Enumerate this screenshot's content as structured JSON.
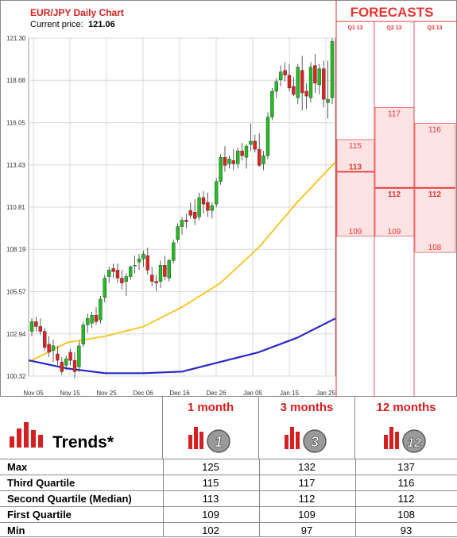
{
  "title": "EUR/JPY Daily Chart",
  "price_label": "Current price:",
  "price_value": "121.06",
  "forecasts_label": "FORECASTS",
  "colors": {
    "up": "#22bb22",
    "down": "#dd2222",
    "ma_short": "#f5c21b",
    "ma_long": "#2727c8",
    "forecast": "#e53535",
    "forecast_fill": "#fde3e3"
  },
  "chart_data": {
    "type": "candlestick",
    "title": "EUR/JPY Daily Chart",
    "ylim": [
      100.32,
      121.3
    ],
    "y_ticks": [
      "121.30",
      "118.68",
      "116.05",
      "113.43",
      "110.81",
      "108.19",
      "105.57",
      "102.94",
      "100.32"
    ],
    "x_ticks": [
      "Nov 05",
      "Nov 15",
      "Nov 25",
      "Dec 06",
      "Dec 16",
      "Dec 26",
      "Jan 05",
      "Jan 15",
      "Jan 25"
    ],
    "candles": [
      [
        103.1,
        103.9,
        102.8,
        103.7
      ],
      [
        103.7,
        104.0,
        103.1,
        103.4
      ],
      [
        103.4,
        103.9,
        102.9,
        103.1
      ],
      [
        103.1,
        103.3,
        101.9,
        102.1
      ],
      [
        102.3,
        102.8,
        101.5,
        101.8
      ],
      [
        101.9,
        102.6,
        101.2,
        102.2
      ],
      [
        101.7,
        102.2,
        101.0,
        101.3
      ],
      [
        101.2,
        101.5,
        100.4,
        100.6
      ],
      [
        101.0,
        101.6,
        100.7,
        101.4
      ],
      [
        101.8,
        102.0,
        101.0,
        101.3
      ],
      [
        101.3,
        101.8,
        100.2,
        100.6
      ],
      [
        100.9,
        102.5,
        100.6,
        102.2
      ],
      [
        102.3,
        103.7,
        102.1,
        103.5
      ],
      [
        103.5,
        104.2,
        103.0,
        103.9
      ],
      [
        103.6,
        104.3,
        103.3,
        104.1
      ],
      [
        104.1,
        104.6,
        103.5,
        103.7
      ],
      [
        103.8,
        105.3,
        103.6,
        105.1
      ],
      [
        105.2,
        106.6,
        104.9,
        106.4
      ],
      [
        106.5,
        107.1,
        106.1,
        106.9
      ],
      [
        107.0,
        107.3,
        106.4,
        106.8
      ],
      [
        106.9,
        107.3,
        106.1,
        106.4
      ],
      [
        106.4,
        106.9,
        105.7,
        106.1
      ],
      [
        106.2,
        106.7,
        105.3,
        106.5
      ],
      [
        106.5,
        107.2,
        106.3,
        107.1
      ],
      [
        107.2,
        107.8,
        106.7,
        107.2
      ],
      [
        107.4,
        107.9,
        106.9,
        107.6
      ],
      [
        107.6,
        108.1,
        107.1,
        107.9
      ],
      [
        107.8,
        108.3,
        106.6,
        106.9
      ],
      [
        106.6,
        107.1,
        105.9,
        106.2
      ],
      [
        106.2,
        106.6,
        105.6,
        106.1
      ],
      [
        106.2,
        107.5,
        105.8,
        107.2
      ],
      [
        107.2,
        107.8,
        106.3,
        106.5
      ],
      [
        106.4,
        107.6,
        106.2,
        107.5
      ],
      [
        107.5,
        108.8,
        107.3,
        108.6
      ],
      [
        108.8,
        109.8,
        108.6,
        109.6
      ],
      [
        109.6,
        110.2,
        109.1,
        110.0
      ],
      [
        110.0,
        110.4,
        109.5,
        109.9
      ],
      [
        110.6,
        111.1,
        110.1,
        110.3
      ],
      [
        110.5,
        111.3,
        109.7,
        110.1
      ],
      [
        110.2,
        111.7,
        110.0,
        111.4
      ],
      [
        111.4,
        111.8,
        110.4,
        111.0
      ],
      [
        111.1,
        111.7,
        110.2,
        110.6
      ],
      [
        110.6,
        111.1,
        110.1,
        110.9
      ],
      [
        111.0,
        112.6,
        110.8,
        112.4
      ],
      [
        112.4,
        114.1,
        112.2,
        113.9
      ],
      [
        113.9,
        114.6,
        113.0,
        113.4
      ],
      [
        113.5,
        114.0,
        113.2,
        113.8
      ],
      [
        113.7,
        114.4,
        113.1,
        113.5
      ],
      [
        113.5,
        114.5,
        113.2,
        114.3
      ],
      [
        114.3,
        114.8,
        113.7,
        114.0
      ],
      [
        113.9,
        114.7,
        113.2,
        114.6
      ],
      [
        114.7,
        116.0,
        114.3,
        114.9
      ],
      [
        114.9,
        115.3,
        114.2,
        114.4
      ],
      [
        114.4,
        115.4,
        113.3,
        113.4
      ],
      [
        113.5,
        114.3,
        113.1,
        114.0
      ],
      [
        114.0,
        116.7,
        113.8,
        116.4
      ],
      [
        116.4,
        118.2,
        116.2,
        118.0
      ],
      [
        118.0,
        118.8,
        117.6,
        118.6
      ],
      [
        118.7,
        119.6,
        118.3,
        119.2
      ],
      [
        119.3,
        119.8,
        118.6,
        119.0
      ],
      [
        119.0,
        119.7,
        118.0,
        118.2
      ],
      [
        118.3,
        118.9,
        117.7,
        117.8
      ],
      [
        117.6,
        119.7,
        117.2,
        119.5
      ],
      [
        119.3,
        120.2,
        116.8,
        117.9
      ],
      [
        118.0,
        118.5,
        116.9,
        117.7
      ],
      [
        117.6,
        119.8,
        117.3,
        119.5
      ],
      [
        119.6,
        120.3,
        117.9,
        118.5
      ],
      [
        118.4,
        119.7,
        117.8,
        119.4
      ],
      [
        119.4,
        119.9,
        117.0,
        117.5
      ],
      [
        117.3,
        119.9,
        116.3,
        117.5
      ],
      [
        117.6,
        121.3,
        117.2,
        121.1
      ]
    ],
    "series": [
      {
        "name": "",
        "values": [
          101.2,
          102.4,
          102.8,
          103.4,
          104.6,
          106.1,
          108.3,
          111.1,
          113.6
        ]
      },
      {
        "name": "",
        "values": [
          101.3,
          100.8,
          100.5,
          100.5,
          100.6,
          101.2,
          101.8,
          102.7,
          103.9
        ]
      }
    ],
    "forecast": {
      "columns": [
        {
          "label": "Q1 13",
          "q3": "115",
          "median": "113",
          "q1": "109",
          "q3v": 115,
          "medv": 113,
          "q1v": 109
        },
        {
          "label": "Q2 13",
          "q3": "117",
          "median": "112",
          "q1": "109",
          "q3v": 117,
          "medv": 112,
          "q1v": 109
        },
        {
          "label": "Q3 13",
          "q3": "116",
          "median": "112",
          "q1": "108",
          "q3v": 116,
          "medv": 112,
          "q1v": 108
        }
      ]
    }
  },
  "trends": {
    "label": "Trends*",
    "headers": [
      "1 month",
      "3 months",
      "12 months"
    ],
    "badges": [
      "1",
      "3",
      "12"
    ],
    "rows": [
      {
        "label": "Max",
        "values": [
          "125",
          "132",
          "137"
        ]
      },
      {
        "label": "Third Quartile",
        "values": [
          "115",
          "117",
          "116"
        ]
      },
      {
        "label": "Second Quartile (Median)",
        "values": [
          "113",
          "112",
          "112"
        ]
      },
      {
        "label": "First Quartile",
        "values": [
          "109",
          "109",
          "108"
        ]
      },
      {
        "label": "Min",
        "values": [
          "102",
          "97",
          "93"
        ]
      }
    ]
  }
}
